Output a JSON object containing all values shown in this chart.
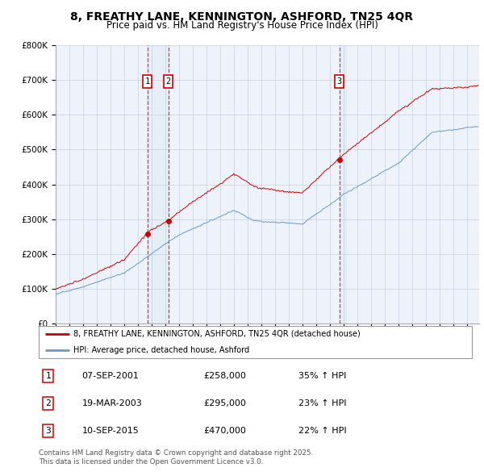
{
  "title": "8, FREATHY LANE, KENNINGTON, ASHFORD, TN25 4QR",
  "subtitle": "Price paid vs. HM Land Registry's House Price Index (HPI)",
  "ylim": [
    0,
    800000
  ],
  "yticks": [
    0,
    100000,
    200000,
    300000,
    400000,
    500000,
    600000,
    700000,
    800000
  ],
  "xlim_start": 1995.0,
  "xlim_end": 2025.9,
  "sale_events": [
    {
      "num": 1,
      "year": 2001.69,
      "price": 258000,
      "date": "07-SEP-2001",
      "change": "35% ↑ HPI"
    },
    {
      "num": 2,
      "year": 2003.22,
      "price": 295000,
      "date": "19-MAR-2003",
      "change": "23% ↑ HPI"
    },
    {
      "num": 3,
      "year": 2015.69,
      "price": 470000,
      "date": "10-SEP-2015",
      "change": "22% ↑ HPI"
    }
  ],
  "legend_label_red": "8, FREATHY LANE, KENNINGTON, ASHFORD, TN25 4QR (detached house)",
  "legend_label_blue": "HPI: Average price, detached house, Ashford",
  "footer_line1": "Contains HM Land Registry data © Crown copyright and database right 2025.",
  "footer_line2": "This data is licensed under the Open Government Licence v3.0.",
  "red_color": "#cc0000",
  "blue_color": "#6699cc",
  "bg_color": "#eef2fb",
  "grid_color": "#c8d0e0",
  "title_fontsize": 10,
  "subtitle_fontsize": 8.5,
  "axis_fontsize": 7
}
